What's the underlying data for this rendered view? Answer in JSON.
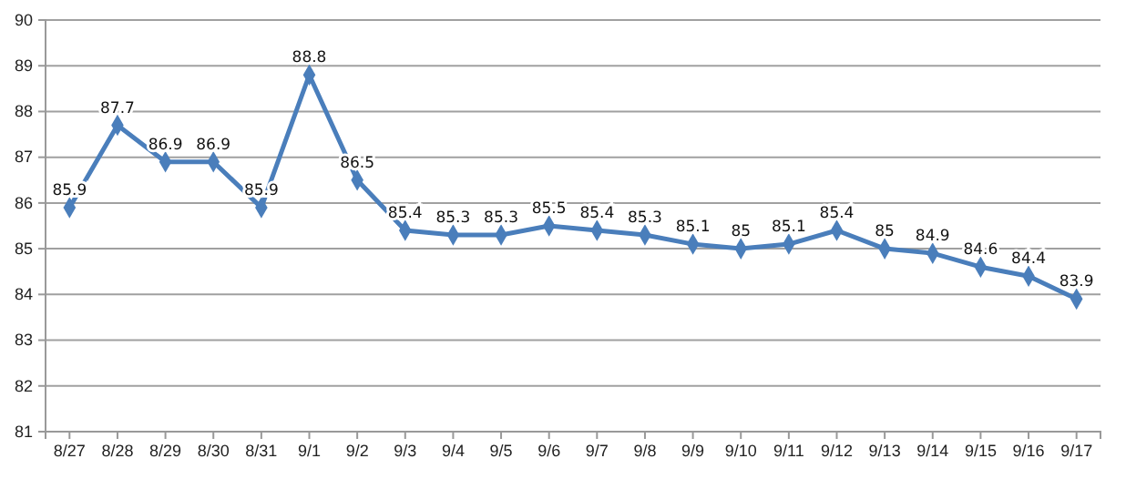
{
  "chart_data": {
    "type": "line",
    "categories": [
      "8/27",
      "8/28",
      "8/29",
      "8/30",
      "8/31",
      "9/1",
      "9/2",
      "9/3",
      "9/4",
      "9/5",
      "9/6",
      "9/7",
      "9/8",
      "9/9",
      "9/10",
      "9/11",
      "9/12",
      "9/13",
      "9/14",
      "9/15",
      "9/16",
      "9/17"
    ],
    "series": [
      {
        "color": "#4a7ebb",
        "values": [
          85.9,
          87.7,
          86.9,
          86.9,
          85.9,
          88.8,
          86.5,
          85.4,
          85.3,
          85.3,
          85.5,
          85.4,
          85.3,
          85.1,
          85,
          85.1,
          85.4,
          85,
          84.9,
          84.6,
          84.4,
          83.9
        ]
      }
    ],
    "ylim": [
      81,
      90
    ],
    "yticks": [
      81,
      82,
      83,
      84,
      85,
      86,
      87,
      88,
      89,
      90
    ],
    "grid": "y",
    "marker": "diamond",
    "data_labels": true
  }
}
